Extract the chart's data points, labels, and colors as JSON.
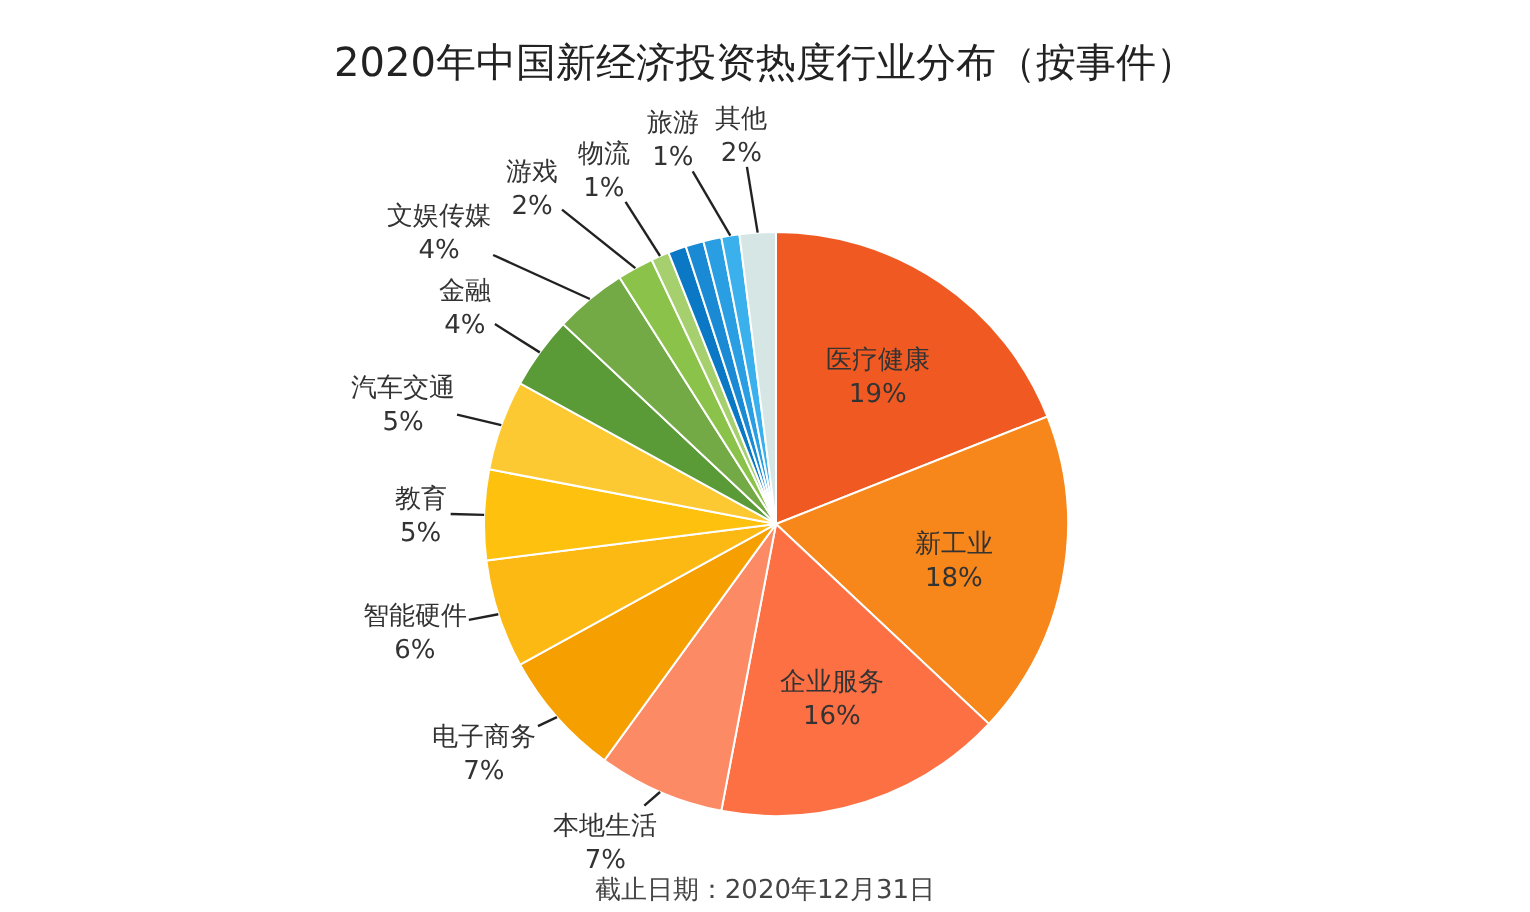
{
  "chart_data": {
    "type": "pie",
    "title": "2020年中国新经济投资热度行业分布（按事件）",
    "categories": [
      "医疗健康",
      "新工业",
      "企业服务",
      "本地生活",
      "电子商务",
      "智能硬件",
      "教育",
      "汽车交通",
      "金融",
      "文娱传媒",
      "游戏",
      "物流",
      null,
      null,
      null,
      "旅游",
      "其他"
    ],
    "values": [
      19,
      18,
      16,
      7,
      7,
      6,
      5,
      5,
      4,
      4,
      2,
      1,
      1,
      1,
      1,
      1,
      2
    ],
    "colors": [
      "#f05a22",
      "#f7861b",
      "#fd7043",
      "#fb8a65",
      "#f5a000",
      "#fdb913",
      "#fec10e",
      "#fdc932",
      "#5a9a37",
      "#73aa45",
      "#8bc34a",
      "#a5d06d",
      "#0a78c4",
      "#1a8ad4",
      "#2a9ee2",
      "#3ab0ec",
      "#d6e6e4"
    ],
    "value_labels": [
      "19%",
      "18%",
      "16%",
      "7%",
      "7%",
      "6%",
      "5%",
      "5%",
      "4%",
      "4%",
      "2%",
      "1%",
      null,
      null,
      null,
      "1%",
      "2%"
    ],
    "annotations": [
      "截止日期：2020年12月31日"
    ]
  }
}
